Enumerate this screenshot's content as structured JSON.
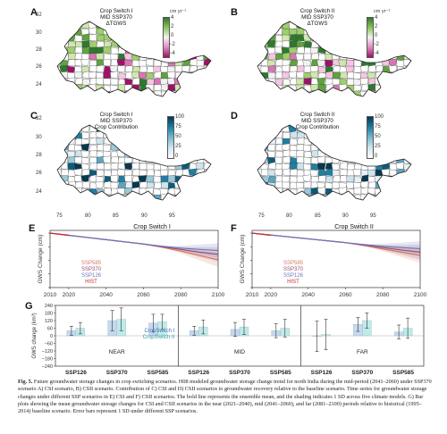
{
  "maps": [
    {
      "letter": "A",
      "title": [
        "Crop Switch I",
        "MID SSP370",
        "ΔTGWS"
      ],
      "colorbar": {
        "unit": "cm yr⁻¹",
        "ticks": [
          "4",
          "2",
          "0",
          "−2",
          "−4"
        ],
        "kind": "diverging"
      },
      "yticks": [
        "32",
        "30",
        "28",
        "26",
        "24"
      ],
      "xticks": []
    },
    {
      "letter": "B",
      "title": [
        "Crop Switch II",
        "MID SSP370",
        "ΔTGWS"
      ],
      "colorbar": {
        "unit": "cm yr⁻¹",
        "ticks": [
          "4",
          "2",
          "0",
          "−2",
          "−4"
        ],
        "kind": "diverging"
      },
      "yticks": [],
      "xticks": []
    },
    {
      "letter": "C",
      "title": [
        "Crop Switch I",
        "MID SSP370",
        "Crop Contribution"
      ],
      "colorbar": {
        "unit": "",
        "ticks": [
          "100",
          "75",
          "50",
          "25",
          "0"
        ],
        "kind": "sequential"
      },
      "yticks": [
        "32",
        "30",
        "28",
        "26",
        "24"
      ],
      "xticks": [
        "75",
        "80",
        "85",
        "90",
        "95"
      ]
    },
    {
      "letter": "D",
      "title": [
        "Crop Switch II",
        "MID SSP370",
        "Crop Contribution"
      ],
      "colorbar": {
        "unit": "",
        "ticks": [
          "100",
          "75",
          "50",
          "25",
          "0"
        ],
        "kind": "sequential"
      },
      "yticks": [],
      "xticks": [
        "75",
        "80",
        "85",
        "90",
        "95"
      ]
    }
  ],
  "chart_data": [
    {
      "panel": "E",
      "type": "line",
      "title": "Crop Switch I",
      "ylabel": "GWS Change (cm)",
      "xlim": [
        2010,
        2100
      ],
      "xticks": [
        "2010",
        "2020",
        "2040",
        "2060",
        "2080",
        "2100"
      ],
      "yticks": [
        "0",
        "−50",
        "−100",
        "−150",
        "−200"
      ],
      "ylim": [
        -200,
        10
      ],
      "band_from": 2070,
      "series": [
        {
          "name": "SSP585",
          "color": "#d2785f",
          "x": [
            2010,
            2020,
            2030,
            2040,
            2050,
            2060,
            2070,
            2080,
            2090,
            2100
          ],
          "y": [
            0,
            -8,
            -16,
            -24,
            -32,
            -40,
            -52,
            -66,
            -82,
            -98
          ]
        },
        {
          "name": "SSP370",
          "color": "#9a4d7a",
          "x": [
            2010,
            2020,
            2030,
            2040,
            2050,
            2060,
            2070,
            2080,
            2090,
            2100
          ],
          "y": [
            0,
            -8,
            -16,
            -24,
            -32,
            -40,
            -50,
            -60,
            -70,
            -78
          ]
        },
        {
          "name": "SSP126",
          "color": "#6a78b8",
          "x": [
            2010,
            2020,
            2030,
            2040,
            2050,
            2060,
            2070,
            2080,
            2090,
            2100
          ],
          "y": [
            0,
            -8,
            -16,
            -24,
            -32,
            -40,
            -48,
            -55,
            -60,
            -64
          ]
        },
        {
          "name": "HIST",
          "color": "#d2282c",
          "x": [
            2010,
            2015,
            2020
          ],
          "y": [
            0,
            -4,
            -8
          ]
        }
      ]
    },
    {
      "panel": "F",
      "type": "line",
      "title": "Crop Switch II",
      "ylabel": "GWS Change (cm)",
      "xlim": [
        2010,
        2100
      ],
      "xticks": [
        "2010",
        "2020",
        "2040",
        "2060",
        "2080",
        "2100"
      ],
      "yticks": [
        "0",
        "−50",
        "−100",
        "−150",
        "−200"
      ],
      "ylim": [
        -200,
        10
      ],
      "band_from": 2070,
      "series": [
        {
          "name": "SSP585",
          "color": "#d2785f",
          "x": [
            2010,
            2020,
            2030,
            2040,
            2050,
            2060,
            2070,
            2080,
            2090,
            2100
          ],
          "y": [
            0,
            -7,
            -14,
            -21,
            -28,
            -35,
            -46,
            -58,
            -70,
            -82
          ]
        },
        {
          "name": "SSP370",
          "color": "#9a4d7a",
          "x": [
            2010,
            2020,
            2030,
            2040,
            2050,
            2060,
            2070,
            2080,
            2090,
            2100
          ],
          "y": [
            0,
            -7,
            -14,
            -21,
            -28,
            -35,
            -44,
            -53,
            -62,
            -70
          ]
        },
        {
          "name": "SSP126",
          "color": "#6a78b8",
          "x": [
            2010,
            2020,
            2030,
            2040,
            2050,
            2060,
            2070,
            2080,
            2090,
            2100
          ],
          "y": [
            0,
            -7,
            -14,
            -21,
            -28,
            -35,
            -42,
            -48,
            -53,
            -57
          ]
        },
        {
          "name": "HIST",
          "color": "#d2282c",
          "x": [
            2010,
            2015,
            2020
          ],
          "y": [
            0,
            -4,
            -8
          ]
        }
      ]
    },
    {
      "panel": "G",
      "type": "bar",
      "ylabel": "GWS change (km³)",
      "ylim": [
        -240,
        240
      ],
      "yticks": [
        "240",
        "180",
        "120",
        "60",
        "0",
        "−60",
        "−120",
        "−180",
        "−240"
      ],
      "periods": [
        "NEAR",
        "MID",
        "FAR"
      ],
      "categories": [
        "SSP126",
        "SSP370",
        "SSP585",
        "SSP126",
        "SSP370",
        "SSP585",
        "SSP126",
        "SSP370",
        "SSP585"
      ],
      "legend": [
        "CropSwitch I",
        "CropSwitch II"
      ],
      "series": [
        {
          "name": "CropSwitch I",
          "color": "#c5d8ef",
          "values": [
            40,
            120,
            100,
            40,
            50,
            40,
            -5,
            90,
            30
          ],
          "err": [
            35,
            80,
            70,
            35,
            55,
            55,
            120,
            55,
            55
          ]
        },
        {
          "name": "CropSwitch II",
          "color": "#bfeaea",
          "values": [
            60,
            130,
            110,
            70,
            70,
            60,
            10,
            120,
            60
          ],
          "err": [
            45,
            90,
            60,
            55,
            60,
            70,
            120,
            60,
            80
          ]
        }
      ]
    }
  ],
  "caption": {
    "fig": "Fig. 5.",
    "text": " Future groundwater storage changes in crop switching scenarios. H08 modeled groundwater storage change trend for north India during the mid-period (2041–2060) under SSP370 scenario A) CSI scenario, B) CSII scenario. Contribution of C) CSI and D) CSII scenarios to groundwater recovery relative to the baseline scenario. Time series for groundwater storage changes under different SSP scenarios in E) CSI and F) CSII scenarios. The bold line represents the ensemble mean, and the shading indicates 1 SD across five climate models. G) Bar plots showing the mean groundwater storage changes for CSI and CSII scenarios in the near (2021–2040), mid (2041–2060), and far (2081–2100) periods relative to historical (1995–2014) baseline scenario. Error bars represent 1 SD under different SSP scenarios."
  }
}
